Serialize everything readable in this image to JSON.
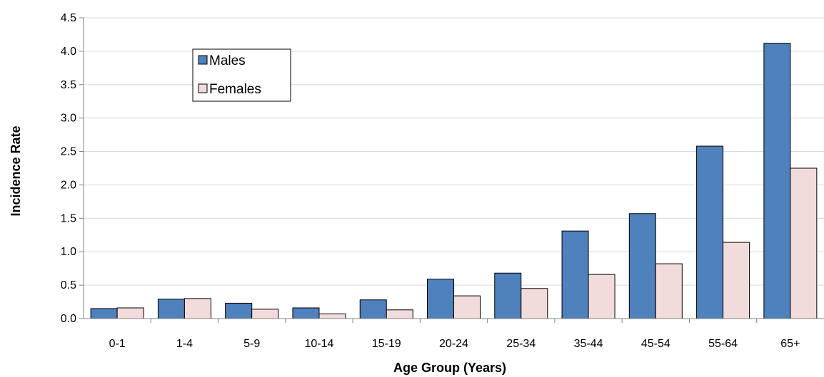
{
  "chart_data": {
    "type": "bar",
    "categories": [
      "0-1",
      "1-4",
      "5-9",
      "10-14",
      "15-19",
      "20-24",
      "25-34",
      "35-44",
      "45-54",
      "55-64",
      "65+"
    ],
    "series": [
      {
        "name": "Males",
        "color": "#4f81bd",
        "values": [
          0.15,
          0.29,
          0.23,
          0.16,
          0.28,
          0.59,
          0.68,
          1.31,
          1.57,
          2.58,
          4.12
        ]
      },
      {
        "name": "Females",
        "color": "#f2dcdb",
        "values": [
          0.16,
          0.3,
          0.14,
          0.07,
          0.13,
          0.34,
          0.45,
          0.66,
          0.82,
          1.14,
          2.25
        ]
      }
    ],
    "xlabel": "Age Group (Years)",
    "ylabel": "Incidence Rate",
    "ylim": [
      0,
      4.5
    ],
    "yticks": [
      "0.0",
      "0.5",
      "1.0",
      "1.5",
      "2.0",
      "2.5",
      "3.0",
      "3.5",
      "4.0",
      "4.5"
    ],
    "grid": true,
    "legend_position": "top-left"
  }
}
